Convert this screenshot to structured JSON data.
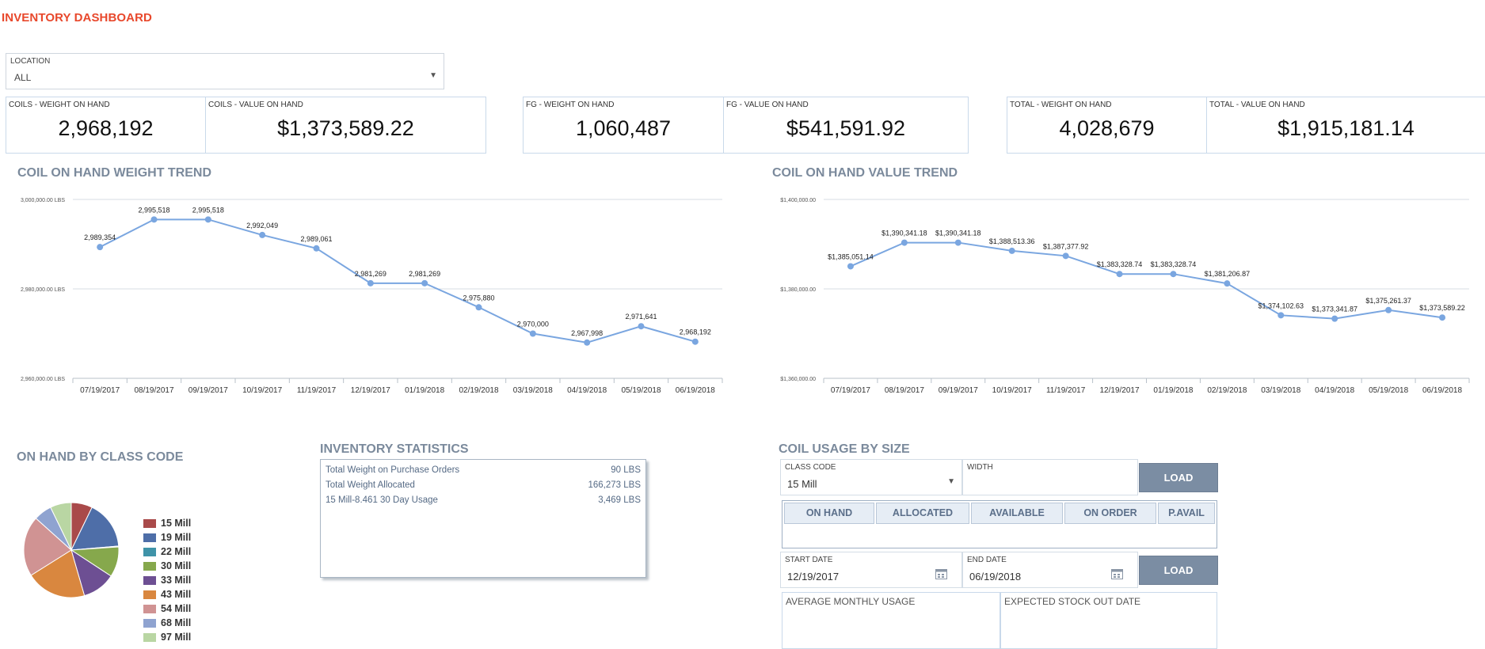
{
  "page": {
    "title": "INVENTORY DASHBOARD"
  },
  "location": {
    "label": "LOCATION",
    "value": "ALL"
  },
  "kpis": [
    {
      "label": "COILS - WEIGHT ON HAND",
      "value": "2,968,192"
    },
    {
      "label": "COILS - VALUE ON HAND",
      "value": "$1,373,589.22"
    },
    {
      "label": "FG - WEIGHT ON HAND",
      "value": "1,060,487"
    },
    {
      "label": "FG - VALUE ON HAND",
      "value": "$541,591.92"
    },
    {
      "label": "TOTAL - WEIGHT ON HAND",
      "value": "4,028,679"
    },
    {
      "label": "TOTAL - VALUE ON HAND",
      "value": "$1,915,181.14"
    }
  ],
  "weight_trend": {
    "title": "COIL ON HAND WEIGHT TREND"
  },
  "value_trend": {
    "title": "COIL ON HAND VALUE TREND"
  },
  "class_code": {
    "title": "ON HAND BY CLASS CODE"
  },
  "stats": {
    "title": "INVENTORY STATISTICS",
    "rows": [
      {
        "label": "Total Weight on Purchase Orders",
        "value": "90 LBS"
      },
      {
        "label": "Total Weight Allocated",
        "value": "166,273 LBS"
      },
      {
        "label": "15 Mill-8.461 30 Day Usage",
        "value": "3,469 LBS"
      }
    ]
  },
  "usage": {
    "title": "COIL USAGE BY SIZE",
    "class_code_label": "CLASS CODE",
    "class_code_value": "15 Mill",
    "width_label": "WIDTH",
    "width_value": "",
    "load_label": "LOAD",
    "tabs": [
      "ON HAND",
      "ALLOCATED",
      "AVAILABLE",
      "ON ORDER",
      "P.AVAIL"
    ],
    "start_date_label": "START DATE",
    "start_date_value": "12/19/2017",
    "end_date_label": "END DATE",
    "end_date_value": "06/19/2018",
    "load2_label": "LOAD",
    "avg_label": "AVERAGE MONTHLY USAGE",
    "stockout_label": "EXPECTED STOCK OUT DATE"
  },
  "colors": {
    "title_accent": "#e8482c",
    "section_title": "#7b8a9c",
    "line": "#7aa6e0",
    "button": "#7b8da3"
  },
  "chart_data": [
    {
      "type": "line",
      "title": "COIL ON HAND WEIGHT TREND",
      "categories": [
        "07/19/2017",
        "08/19/2017",
        "09/19/2017",
        "10/19/2017",
        "11/19/2017",
        "12/19/2017",
        "01/19/2018",
        "02/19/2018",
        "03/19/2018",
        "04/19/2018",
        "05/19/2018",
        "06/19/2018"
      ],
      "values": [
        2989354,
        2995518,
        2995518,
        2992049,
        2989061,
        2981269,
        2981269,
        2975880,
        2970000,
        2967998,
        2971641,
        2968192
      ],
      "data_labels": [
        "2,989,354",
        "2,995,518",
        "2,995,518",
        "2,992,049",
        "2,989,061",
        "2,981,269",
        "2,981,269",
        "2,975,880",
        "2,970,000",
        "2,967,998",
        "2,971,641",
        "2,968,192"
      ],
      "y_ticks": [
        3000000,
        2980000,
        2960000
      ],
      "y_tick_labels": [
        "3,000,000.00 LBS",
        "2,980,000.00 LBS",
        "2,960,000.00 LBS"
      ],
      "ylim": [
        2960000,
        3000000
      ],
      "grid": true
    },
    {
      "type": "line",
      "title": "COIL ON HAND VALUE TREND",
      "categories": [
        "07/19/2017",
        "08/19/2017",
        "09/19/2017",
        "10/19/2017",
        "11/19/2017",
        "12/19/2017",
        "01/19/2018",
        "02/19/2018",
        "03/19/2018",
        "04/19/2018",
        "05/19/2018",
        "06/19/2018"
      ],
      "values": [
        1385051.14,
        1390341.18,
        1390341.18,
        1388513.36,
        1387377.92,
        1383328.74,
        1383328.74,
        1381206.87,
        1374102.63,
        1373341.87,
        1375261.37,
        1373589.22
      ],
      "data_labels": [
        "$1,385,051.14",
        "$1,390,341.18",
        "$1,390,341.18",
        "$1,388,513.36",
        "$1,387,377.92",
        "$1,383,328.74",
        "$1,383,328.74",
        "$1,381,206.87",
        "$1,374,102.63",
        "$1,373,341.87",
        "$1,375,261.37",
        "$1,373,589.22"
      ],
      "y_ticks": [
        1400000,
        1380000,
        1360000
      ],
      "y_tick_labels": [
        "$1,400,000.00",
        "$1,380,000.00",
        "$1,360,000.00"
      ],
      "ylim": [
        1360000,
        1400000
      ],
      "grid": true
    },
    {
      "type": "pie",
      "title": "ON HAND BY CLASS CODE",
      "categories": [
        "15 Mill",
        "19 Mill",
        "22 Mill",
        "30 Mill",
        "33 Mill",
        "43 Mill",
        "54 Mill",
        "68 Mill",
        "97 Mill"
      ],
      "values": [
        7,
        16,
        0.3,
        10,
        11,
        20,
        20,
        6,
        7
      ],
      "colors": [
        "#a94a4a",
        "#4e6ea8",
        "#3f93a8",
        "#86a84c",
        "#6d4f93",
        "#d9873f",
        "#d09393",
        "#8fa3d0",
        "#b9d6a3"
      ],
      "legend": "right"
    }
  ]
}
